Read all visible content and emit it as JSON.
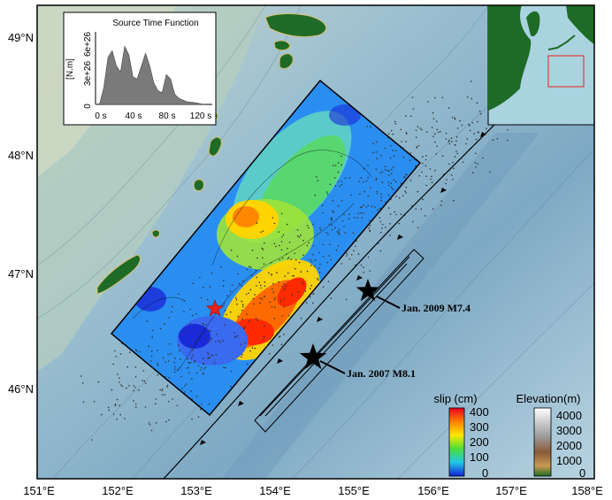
{
  "axes": {
    "lon_labels": [
      "151°E",
      "152°E",
      "153°E",
      "154°E",
      "155°E",
      "156°E",
      "157°E",
      "158°E"
    ],
    "lat_labels": [
      "49°N",
      "48°N",
      "47°N",
      "46°N"
    ]
  },
  "inset_stf": {
    "title": "Source Time Function",
    "ylabel": "[N.m]",
    "yticks": [
      "0",
      "3e+26",
      "6e+26"
    ],
    "xticks": [
      "0 s",
      "40 s",
      "80 s",
      "120 s"
    ]
  },
  "events": [
    {
      "label": "Jan. 2009 M7.4"
    },
    {
      "label": "Jan. 2007 M8.1"
    }
  ],
  "slip_colorbar": {
    "title": "slip (cm)",
    "ticks": [
      "400",
      "300",
      "200",
      "100",
      "0"
    ]
  },
  "elev_colorbar": {
    "title": "Elevation(m)",
    "ticks": [
      "4000",
      "3000",
      "2000",
      "1000",
      "0"
    ]
  },
  "colors": {
    "ocean_deep": "#8fb3c8",
    "ocean_shallow": "#b7d3e0",
    "land": "#1e6b27",
    "epicenter_star": "#e8201c"
  },
  "chart_data": {
    "type": "area",
    "title": "Source Time Function",
    "xlabel": "",
    "ylabel": "[N.m]",
    "x": [
      0,
      5,
      10,
      15,
      20,
      25,
      30,
      35,
      40,
      45,
      50,
      55,
      60,
      65,
      70,
      75,
      80,
      85,
      90,
      95,
      100,
      105,
      110,
      115,
      120,
      125,
      130
    ],
    "series": [
      {
        "values": [
          0,
          1e+25,
          2e+26,
          5.5e+26,
          6.3e+26,
          4.5e+26,
          3.8e+26,
          6.8e+26,
          5.8e+26,
          3.2e+26,
          3e+26,
          4.5e+26,
          6e+26,
          4.5e+26,
          2.5e+26,
          1.6e+26,
          1.4e+26,
          3.5e+26,
          3e+26,
          1.2e+26,
          7e+25,
          5e+25,
          3e+25,
          2.5e+25,
          2e+25,
          1e+25,
          0
        ]
      }
    ],
    "xlim": [
      0,
      140
    ],
    "ylim": [
      0,
      8.5e+26
    ]
  }
}
